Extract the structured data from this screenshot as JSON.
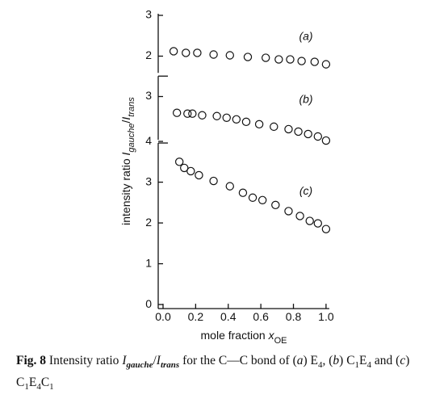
{
  "chart_data": [
    {
      "type": "scatter",
      "annotation": "(a)",
      "x": [
        0.065,
        0.14,
        0.21,
        0.31,
        0.41,
        0.52,
        0.63,
        0.71,
        0.78,
        0.85,
        0.93,
        1.0
      ],
      "values": [
        2.12,
        2.08,
        2.08,
        2.04,
        2.02,
        1.98,
        1.96,
        1.92,
        1.92,
        1.88,
        1.86,
        1.8
      ],
      "ylim": [
        1.55,
        3.04
      ],
      "yticks": [
        2,
        3
      ]
    },
    {
      "type": "scatter",
      "annotation": "(b)",
      "x": [
        0.085,
        0.15,
        0.18,
        0.24,
        0.33,
        0.39,
        0.45,
        0.51,
        0.59,
        0.68,
        0.77,
        0.83,
        0.89,
        0.95,
        1.0
      ],
      "values": [
        2.6,
        2.58,
        2.58,
        2.54,
        2.52,
        2.48,
        2.44,
        2.38,
        2.32,
        2.26,
        2.2,
        2.14,
        2.08,
        2.02,
        1.92
      ],
      "ylim": [
        1.9,
        3.54
      ],
      "yticks": [
        3
      ]
    },
    {
      "type": "scatter",
      "annotation": "(c)",
      "x": [
        0.1,
        0.13,
        0.17,
        0.22,
        0.31,
        0.41,
        0.49,
        0.55,
        0.61,
        0.69,
        0.77,
        0.84,
        0.9,
        0.95,
        1.0
      ],
      "values": [
        3.5,
        3.35,
        3.27,
        3.17,
        3.03,
        2.9,
        2.74,
        2.62,
        2.56,
        2.44,
        2.29,
        2.17,
        2.05,
        1.99,
        1.85
      ],
      "ylim": [
        -0.1,
        4.0
      ],
      "yticks": [
        0,
        1,
        2,
        3,
        4
      ],
      "xlim": [
        -0.03,
        1.02
      ],
      "xticks": [
        {
          "value": 0,
          "label": "0.0"
        },
        0.2,
        0.4,
        0.6,
        0.8,
        {
          "value": 1,
          "label": "1.0"
        }
      ],
      "xlabel": [
        {
          "text": "mole fraction ",
          "style": ""
        },
        {
          "text": "x",
          "style": "i"
        },
        {
          "text": "OE",
          "style": "sub"
        }
      ],
      "ylabel": [
        {
          "text": "intensity ratio ",
          "style": ""
        },
        {
          "text": "I",
          "style": "i"
        },
        {
          "text": "gauche",
          "style": "isub"
        },
        {
          "text": "/",
          "style": ""
        },
        {
          "text": "I",
          "style": "i"
        },
        {
          "text": "trans",
          "style": "isub"
        }
      ]
    }
  ],
  "caption": [
    {
      "text": "Fig. 8",
      "style": "b"
    },
    {
      "text": "  Intensity ratio ",
      "style": ""
    },
    {
      "text": "I",
      "style": "i"
    },
    {
      "text": "gauche",
      "style": "isub"
    },
    {
      "text": "/",
      "style": ""
    },
    {
      "text": "I",
      "style": "i"
    },
    {
      "text": "trans",
      "style": "isub"
    },
    {
      "text": " for the C—C bond of (",
      "style": ""
    },
    {
      "text": "a",
      "style": "i"
    },
    {
      "text": ") E",
      "style": ""
    },
    {
      "text": "4",
      "style": "sub"
    },
    {
      "text": ", (",
      "style": ""
    },
    {
      "text": "b",
      "style": "i"
    },
    {
      "text": ") C",
      "style": ""
    },
    {
      "text": "1",
      "style": "sub"
    },
    {
      "text": "E",
      "style": ""
    },
    {
      "text": "4",
      "style": "sub"
    },
    {
      "text": " and (",
      "style": ""
    },
    {
      "text": "c",
      "style": "i"
    },
    {
      "text": ") C",
      "style": ""
    },
    {
      "text": "1",
      "style": "sub"
    },
    {
      "text": "E",
      "style": ""
    },
    {
      "text": "4",
      "style": "sub"
    },
    {
      "text": "C",
      "style": ""
    },
    {
      "text": "1",
      "style": "sub"
    }
  ]
}
